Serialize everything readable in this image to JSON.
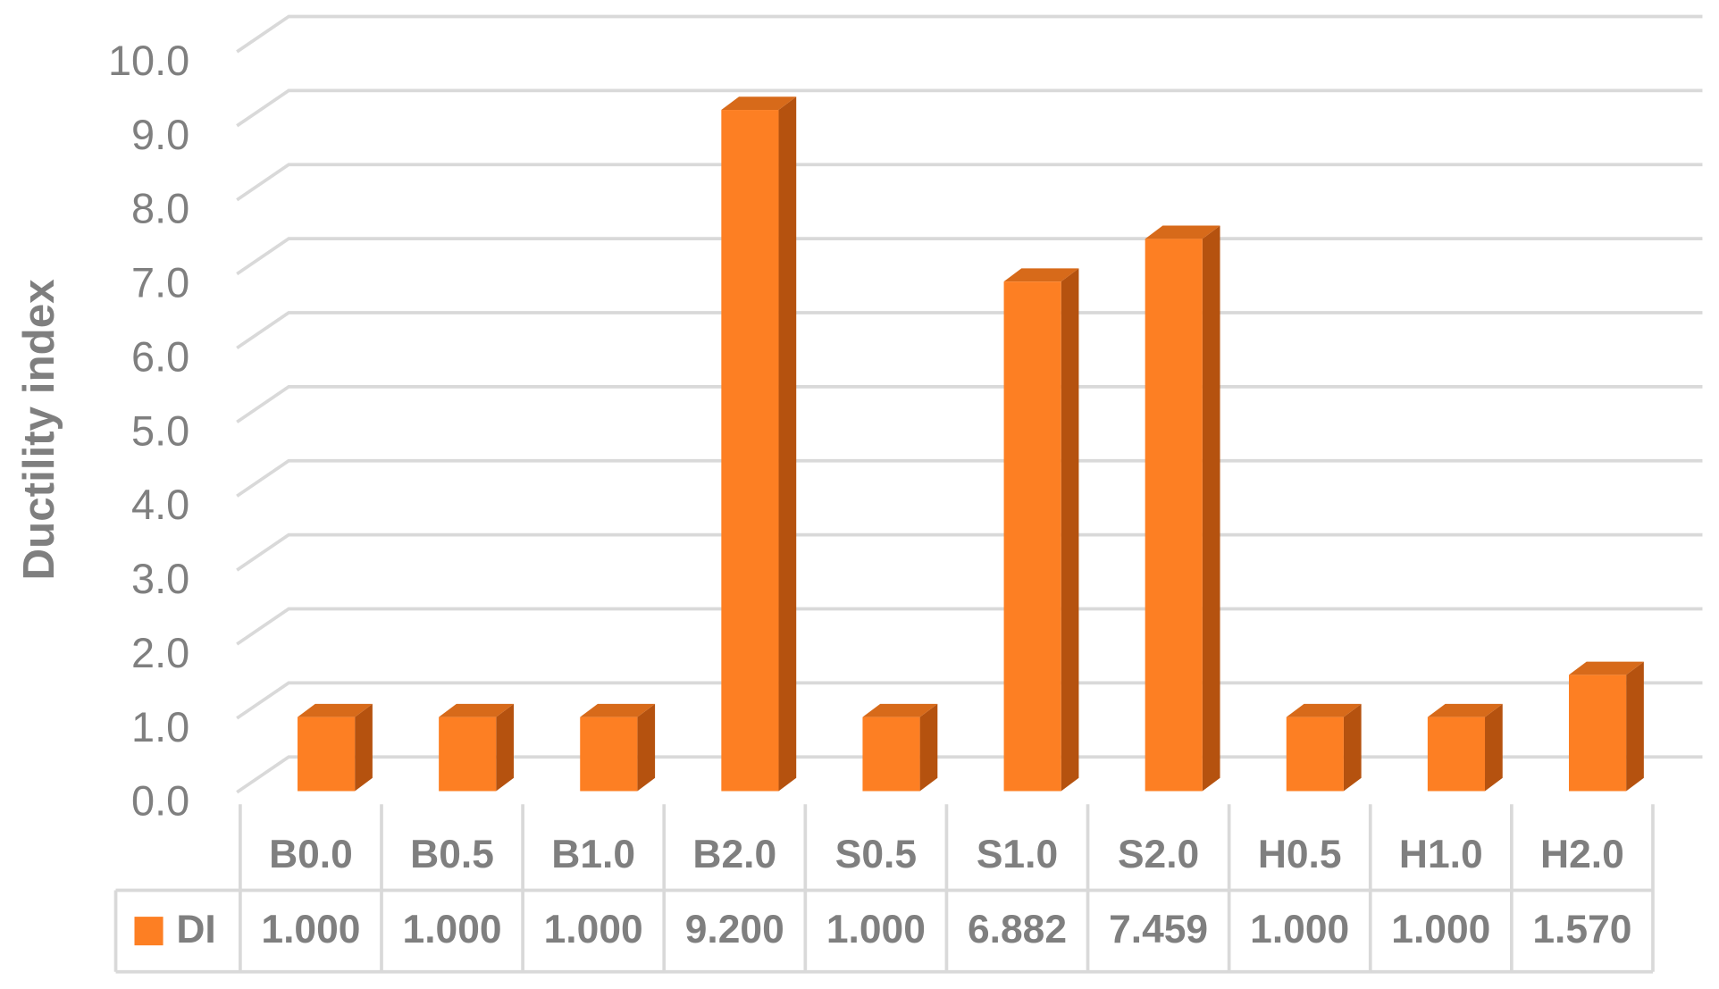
{
  "chart_data": {
    "type": "bar",
    "y_label": "Ductility index",
    "categories": [
      "B0.0",
      "B0.5",
      "B1.0",
      "B2.0",
      "S0.5",
      "S1.0",
      "S2.0",
      "H0.5",
      "H1.0",
      "H2.0"
    ],
    "series": [
      {
        "name": "DI",
        "color": "#fd7f23",
        "values": [
          1,
          1,
          1,
          9.2,
          1,
          6.882,
          7.459,
          1,
          1,
          1.57
        ],
        "value_labels": [
          "1.000",
          "1.000",
          "1.000",
          "9.200",
          "1.000",
          "6.882",
          "7.459",
          "1.000",
          "1.000",
          "1.570"
        ]
      }
    ],
    "ylim": [
      0,
      10
    ],
    "yticks": [
      {
        "value": 0,
        "label": "0.0"
      },
      {
        "value": 1,
        "label": "1.0"
      },
      {
        "value": 2,
        "label": "2.0"
      },
      {
        "value": 3,
        "label": "3.0"
      },
      {
        "value": 4,
        "label": "4.0"
      },
      {
        "value": 5,
        "label": "5.0"
      },
      {
        "value": 6,
        "label": "6.0"
      },
      {
        "value": 7,
        "label": "7.0"
      },
      {
        "value": 8,
        "label": "8.0"
      },
      {
        "value": 9,
        "label": "9.0"
      },
      {
        "value": 10,
        "label": "10.0"
      }
    ],
    "grid": true
  }
}
